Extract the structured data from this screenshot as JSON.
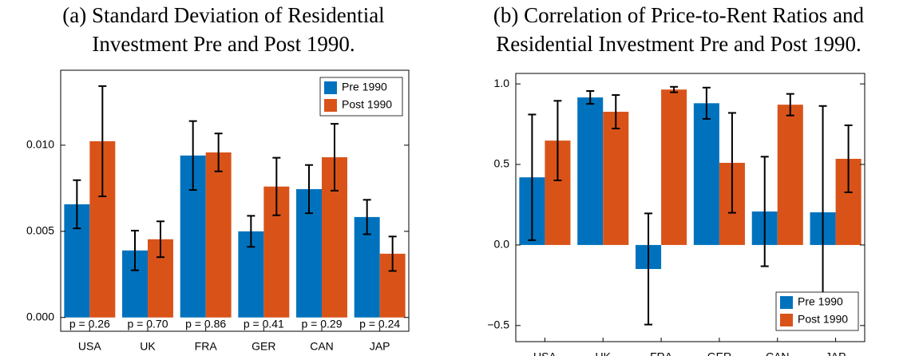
{
  "chart_data": [
    {
      "type": "bar",
      "title": [
        "(a) Standard Deviation of Residential",
        "Investment Pre and Post 1990."
      ],
      "categories": [
        "USA",
        "UK",
        "FRA",
        "GER",
        "CAN",
        "JAP"
      ],
      "series": [
        {
          "name": "Pre 1990",
          "color": "#0072bd",
          "values": [
            0.00657,
            0.00389,
            0.0094,
            0.005,
            0.00745,
            0.00583
          ],
          "errors": [
            0.0014,
            0.00115,
            0.002,
            0.0009,
            0.0014,
            0.001
          ]
        },
        {
          "name": "Post 1990",
          "color": "#d95319",
          "values": [
            0.01023,
            0.00454,
            0.00958,
            0.0076,
            0.0093,
            0.0037
          ],
          "errors": [
            0.0032,
            0.00104,
            0.0011,
            0.00167,
            0.00194,
            0.001
          ]
        }
      ],
      "annotations": [
        "p = 0.26",
        "p = 0.70",
        "p = 0.86",
        "p = 0.41",
        "p = 0.29",
        "p = 0.24"
      ],
      "ylim": [
        -0.0008,
        0.01435
      ],
      "yticks": [
        {
          "value": 0,
          "label": "0.000"
        },
        {
          "value": 0.005,
          "label": "0.005"
        },
        {
          "value": 0.01,
          "label": "0.010"
        }
      ],
      "legend": "upper right"
    },
    {
      "type": "bar",
      "title": [
        "(b) Correlation of Price-to-Rent Ratios and",
        "Residential Investment Pre and Post 1990."
      ],
      "categories": [
        "USA",
        "UK",
        "FRA",
        "GER",
        "CAN",
        "JAP"
      ],
      "series": [
        {
          "name": "Pre 1990",
          "color": "#0072bd",
          "values": [
            0.42,
            0.916,
            -0.149,
            0.88,
            0.208,
            0.203
          ],
          "errors": [
            0.39,
            0.04,
            0.345,
            0.097,
            0.34,
            0.66
          ]
        },
        {
          "name": "Post 1990",
          "color": "#d95319",
          "values": [
            0.648,
            0.827,
            0.965,
            0.51,
            0.871,
            0.535
          ],
          "errors": [
            0.247,
            0.104,
            0.017,
            0.31,
            0.067,
            0.208
          ]
        }
      ],
      "ylim": [
        -0.6,
        1.065
      ],
      "yticks": [
        {
          "value": -0.5,
          "label": "−0.5"
        },
        {
          "value": 0,
          "label": "0.0"
        },
        {
          "value": 0.5,
          "label": "0.5"
        },
        {
          "value": 1,
          "label": "1.0"
        }
      ],
      "legend": "lower right"
    }
  ]
}
